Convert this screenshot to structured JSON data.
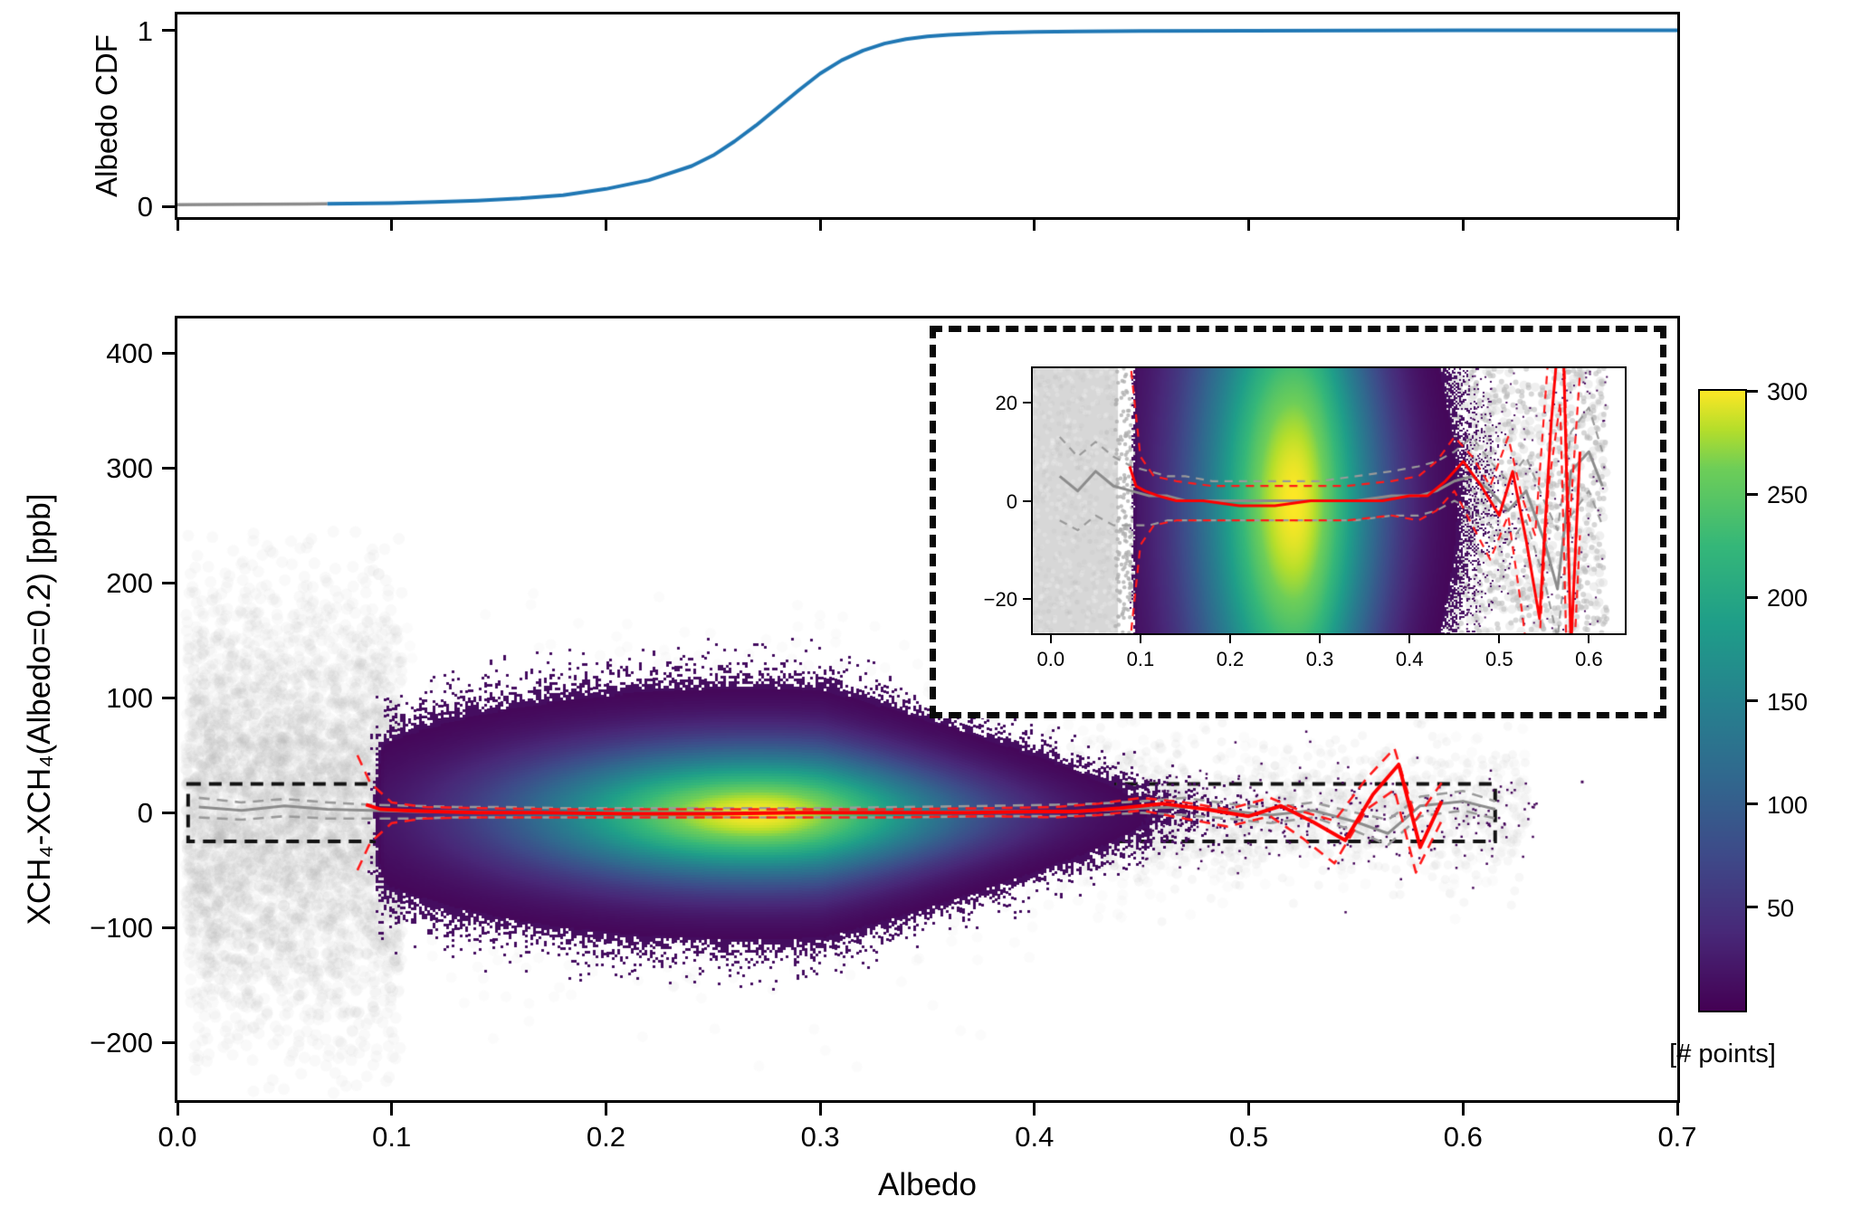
{
  "figure": {
    "background": "#ffffff"
  },
  "top_panel": {
    "ylabel": "Albedo CDF",
    "xlim": [
      0,
      0.7
    ],
    "ylim": [
      -0.06,
      1.09
    ],
    "yticks": [
      {
        "v": 0,
        "label": "0"
      },
      {
        "v": 1,
        "label": "1"
      }
    ],
    "xticks_values": [
      0,
      0.1,
      0.2,
      0.3,
      0.4,
      0.5,
      0.6,
      0.7
    ],
    "line_color": "#1f77b4",
    "low_albedo_color": "#8a8a8a",
    "gray_until": 0.07
  },
  "main_panel": {
    "xlabel": "Albedo",
    "ylabel": "XCH₄-XCH₄(Albedo=0.2) [ppb]",
    "xlim": [
      0,
      0.7
    ],
    "ylim": [
      -250,
      430
    ],
    "xticks": [
      {
        "v": 0.0,
        "label": "0.0"
      },
      {
        "v": 0.1,
        "label": "0.1"
      },
      {
        "v": 0.2,
        "label": "0.2"
      },
      {
        "v": 0.3,
        "label": "0.3"
      },
      {
        "v": 0.4,
        "label": "0.4"
      },
      {
        "v": 0.5,
        "label": "0.5"
      },
      {
        "v": 0.6,
        "label": "0.6"
      },
      {
        "v": 0.7,
        "label": "0.7"
      }
    ],
    "yticks": [
      {
        "v": -200,
        "label": "−200"
      },
      {
        "v": -100,
        "label": "−100"
      },
      {
        "v": 0,
        "label": "0"
      },
      {
        "v": 100,
        "label": "100"
      },
      {
        "v": 200,
        "label": "200"
      },
      {
        "v": 300,
        "label": "300"
      },
      {
        "v": 400,
        "label": "400"
      }
    ],
    "colors": {
      "median_red": "#ff0000",
      "dashed_red": "#ff1a1a",
      "median_gray": "#8c8c8c",
      "dashed_gray": "#9a9a9a",
      "scatter_gray": "#b4b4b4",
      "speckle": "#440154"
    }
  },
  "inset": {
    "xlim": [
      -0.02,
      0.64
    ],
    "ylim": [
      -27,
      27
    ],
    "xticks": [
      {
        "v": 0.0,
        "label": "0.0"
      },
      {
        "v": 0.1,
        "label": "0.1"
      },
      {
        "v": 0.2,
        "label": "0.2"
      },
      {
        "v": 0.3,
        "label": "0.3"
      },
      {
        "v": 0.4,
        "label": "0.4"
      },
      {
        "v": 0.5,
        "label": "0.5"
      },
      {
        "v": 0.6,
        "label": "0.6"
      }
    ],
    "yticks": [
      {
        "v": -20,
        "label": "−20"
      },
      {
        "v": 0,
        "label": "0"
      },
      {
        "v": 20,
        "label": "20"
      }
    ],
    "gray_fill_until": 0.075
  },
  "colorbar": {
    "label": "[# points]",
    "vmin": 0,
    "vmax": 300,
    "ticks": [
      {
        "v": 50,
        "label": "50"
      },
      {
        "v": 100,
        "label": "100"
      },
      {
        "v": 150,
        "label": "150"
      },
      {
        "v": 200,
        "label": "200"
      },
      {
        "v": 250,
        "label": "250"
      },
      {
        "v": 300,
        "label": "300"
      }
    ],
    "viridis": [
      [
        0.0,
        "#440154"
      ],
      [
        0.125,
        "#482878"
      ],
      [
        0.25,
        "#3e4a89"
      ],
      [
        0.375,
        "#31688e"
      ],
      [
        0.5,
        "#26828e"
      ],
      [
        0.625,
        "#1f9e89"
      ],
      [
        0.75,
        "#35b779"
      ],
      [
        0.875,
        "#6ece58"
      ],
      [
        0.9375,
        "#b5de2b"
      ],
      [
        1.0,
        "#fde725"
      ]
    ]
  },
  "chart_data": [
    {
      "type": "line",
      "title": "Albedo CDF",
      "xlabel": "",
      "ylabel": "Albedo CDF",
      "xlim": [
        0,
        0.7
      ],
      "ylim": [
        0,
        1
      ],
      "annotations": "curve drawn gray for albedo below 0.07, blue above",
      "series": [
        {
          "name": "albedo_cdf",
          "color": "#1f77b4",
          "x": [
            0.0,
            0.02,
            0.04,
            0.06,
            0.07,
            0.08,
            0.1,
            0.12,
            0.14,
            0.16,
            0.18,
            0.2,
            0.22,
            0.24,
            0.25,
            0.26,
            0.27,
            0.28,
            0.29,
            0.3,
            0.31,
            0.32,
            0.33,
            0.34,
            0.35,
            0.36,
            0.38,
            0.4,
            0.42,
            0.45,
            0.5,
            0.55,
            0.6,
            0.7
          ],
          "y": [
            0.01,
            0.012,
            0.013,
            0.015,
            0.016,
            0.017,
            0.02,
            0.026,
            0.034,
            0.046,
            0.065,
            0.1,
            0.15,
            0.23,
            0.29,
            0.37,
            0.46,
            0.56,
            0.66,
            0.755,
            0.83,
            0.885,
            0.925,
            0.95,
            0.965,
            0.975,
            0.986,
            0.991,
            0.994,
            0.996,
            0.998,
            0.999,
            1.0,
            1.0
          ]
        }
      ]
    },
    {
      "type": "scatter-density",
      "xlabel": "Albedo",
      "ylabel": "XCH₄-XCH₄(Albedo=0.2) [ppb]",
      "xlim": [
        0,
        0.7
      ],
      "ylim": [
        -250,
        430
      ],
      "colormap": "viridis",
      "count_range": [
        0,
        300
      ],
      "colorbar_label": "[# points]",
      "density_model": {
        "center_x": 0.27,
        "sigma_x_left": 0.075,
        "sigma_x_right": 0.065,
        "x_cut_low": 0.097,
        "sigma_y_center": 39,
        "sigma_y_right_min": 12,
        "sigma_y_slope": 135,
        "peak_count": 300,
        "speckle_below": 6,
        "visible_below": 0.12
      },
      "gray_cloud": {
        "left": {
          "x_min": 0.004,
          "x_max": 0.105,
          "sigma_y": 95,
          "n": 4200
        },
        "halo": {
          "n": 3000,
          "sigma_x": 0.095,
          "sigma_y_scale": 1.4
        },
        "right": {
          "x_min": 0.4,
          "x_max": 0.63,
          "sigma_y": 30,
          "n": 900
        }
      },
      "roi_box": {
        "x0": 0.005,
        "x1": 0.615,
        "y0": -25,
        "y1": 25
      },
      "outlier_points": [
        [
          0.655,
          28
        ]
      ],
      "inset_xlim": [
        -0.02,
        0.64
      ],
      "inset_ylim": [
        -27,
        27
      ],
      "series": [
        {
          "name": "gray_p84",
          "style": "dashed",
          "color": "#9a9a9a",
          "x": [
            0.01,
            0.03,
            0.05,
            0.07,
            0.09,
            0.11,
            0.13,
            0.15,
            0.18,
            0.22,
            0.26,
            0.3,
            0.34,
            0.38,
            0.41,
            0.43,
            0.45,
            0.47,
            0.49,
            0.51,
            0.53,
            0.55,
            0.565,
            0.58,
            0.6,
            0.615
          ],
          "y": [
            13,
            9,
            12,
            9,
            7,
            6,
            5,
            5,
            4,
            4,
            4,
            4,
            5,
            6,
            7,
            8,
            10,
            13,
            8,
            4,
            9,
            0,
            -6,
            14,
            19,
            10
          ]
        },
        {
          "name": "gray_p16",
          "style": "dashed",
          "color": "#9a9a9a",
          "x": [
            0.01,
            0.03,
            0.05,
            0.07,
            0.09,
            0.11,
            0.13,
            0.15,
            0.18,
            0.22,
            0.26,
            0.3,
            0.34,
            0.38,
            0.41,
            0.43,
            0.45,
            0.47,
            0.49,
            0.51,
            0.53,
            0.55,
            0.565,
            0.58,
            0.6,
            0.615
          ],
          "y": [
            -4,
            -6,
            -3,
            -5,
            -5,
            -5,
            -4,
            -4,
            -4,
            -4,
            -4,
            -4,
            -4,
            -3,
            -3,
            -2,
            0,
            -2,
            -5,
            -9,
            -4,
            -16,
            -28,
            -3,
            2,
            -5
          ]
        },
        {
          "name": "gray_median",
          "style": "solid",
          "color": "#8c8c8c",
          "x": [
            0.01,
            0.03,
            0.05,
            0.07,
            0.09,
            0.11,
            0.13,
            0.15,
            0.18,
            0.22,
            0.26,
            0.3,
            0.34,
            0.38,
            0.41,
            0.43,
            0.45,
            0.47,
            0.49,
            0.51,
            0.53,
            0.55,
            0.565,
            0.58,
            0.6,
            0.615
          ],
          "y": [
            5,
            2,
            6,
            3,
            2,
            1,
            1,
            0,
            0,
            0,
            0,
            0,
            0,
            1,
            1,
            2,
            4,
            5,
            2,
            -2,
            2,
            -8,
            -18,
            6,
            10,
            3
          ]
        },
        {
          "name": "red_p84",
          "style": "dashed",
          "color": "#ff1a1a",
          "x": [
            0.084,
            0.09,
            0.1,
            0.115,
            0.14,
            0.18,
            0.23,
            0.28,
            0.33,
            0.38,
            0.41,
            0.43,
            0.45,
            0.47,
            0.49,
            0.51,
            0.525,
            0.54,
            0.555,
            0.568,
            0.578,
            0.59
          ],
          "y": [
            50,
            26,
            9,
            5,
            4,
            3,
            3,
            3,
            3,
            4,
            5,
            8,
            13,
            9,
            3,
            13,
            1,
            -7,
            30,
            56,
            -6,
            26
          ]
        },
        {
          "name": "red_p16",
          "style": "dashed",
          "color": "#ff1a1a",
          "x": [
            0.084,
            0.09,
            0.1,
            0.115,
            0.14,
            0.18,
            0.23,
            0.28,
            0.33,
            0.38,
            0.41,
            0.43,
            0.45,
            0.47,
            0.49,
            0.51,
            0.525,
            0.54,
            0.555,
            0.568,
            0.578,
            0.59
          ],
          "y": [
            -50,
            -26,
            -9,
            -5,
            -4,
            -4,
            -4,
            -4,
            -4,
            -3,
            -4,
            -2,
            2,
            -5,
            -12,
            -3,
            -22,
            -44,
            3,
            20,
            -52,
            -7
          ]
        },
        {
          "name": "red_median",
          "style": "solid",
          "color": "#ff0000",
          "x": [
            0.088,
            0.095,
            0.105,
            0.12,
            0.14,
            0.17,
            0.21,
            0.25,
            0.29,
            0.33,
            0.37,
            0.4,
            0.42,
            0.44,
            0.46,
            0.48,
            0.5,
            0.515,
            0.53,
            0.545,
            0.558,
            0.57,
            0.58,
            0.59
          ],
          "y": [
            7,
            3,
            2,
            1,
            0,
            0,
            -1,
            -1,
            0,
            0,
            0,
            1,
            1,
            4,
            8,
            3,
            -3,
            6,
            -8,
            -24,
            16,
            42,
            -30,
            10
          ]
        }
      ]
    }
  ]
}
